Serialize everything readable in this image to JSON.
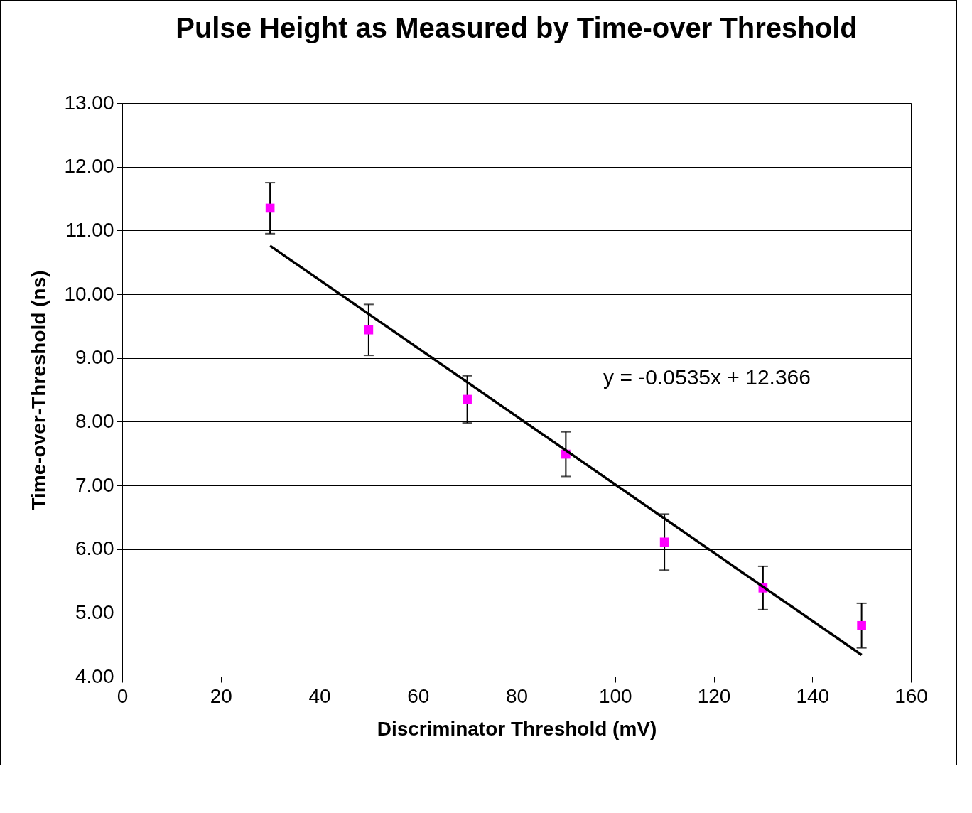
{
  "chart_data": {
    "type": "scatter",
    "title": "Pulse Height as Measured by Time-over Threshold",
    "xlabel": "Discriminator Threshold (mV)",
    "ylabel": "Time-over-Threshold (ns)",
    "x": [
      30,
      50,
      70,
      90,
      110,
      130,
      150
    ],
    "series": [
      {
        "color": "#ff00ff",
        "marker": "square",
        "values": [
          11.35,
          9.44,
          8.35,
          7.49,
          6.11,
          5.39,
          4.8
        ],
        "errors": [
          0.4,
          0.4,
          0.37,
          0.35,
          0.44,
          0.34,
          0.35
        ]
      },
      {
        "type": "line",
        "color": "#000000",
        "x": [
          30,
          150
        ],
        "values": [
          10.76,
          4.34
        ],
        "marker": "none",
        "line_style": "solid"
      }
    ],
    "annotations": [
      "y = -0.0535x + 12.366"
    ],
    "xlim": [
      0,
      160
    ],
    "xticks": [
      0,
      20,
      40,
      60,
      80,
      100,
      120,
      140,
      160
    ],
    "ylim": [
      4,
      13
    ],
    "yticks": [
      {
        "value": 4,
        "label": "4.00"
      },
      {
        "value": 5,
        "label": "5.00"
      },
      {
        "value": 6,
        "label": "6.00"
      },
      {
        "value": 7,
        "label": "7.00"
      },
      {
        "value": 8,
        "label": "8.00"
      },
      {
        "value": 9,
        "label": "9.00"
      },
      {
        "value": 10,
        "label": "10.00"
      },
      {
        "value": 11,
        "label": "11.00"
      },
      {
        "value": 12,
        "label": "12.00"
      },
      {
        "value": 13,
        "label": "13.00"
      }
    ],
    "grid": "y"
  }
}
